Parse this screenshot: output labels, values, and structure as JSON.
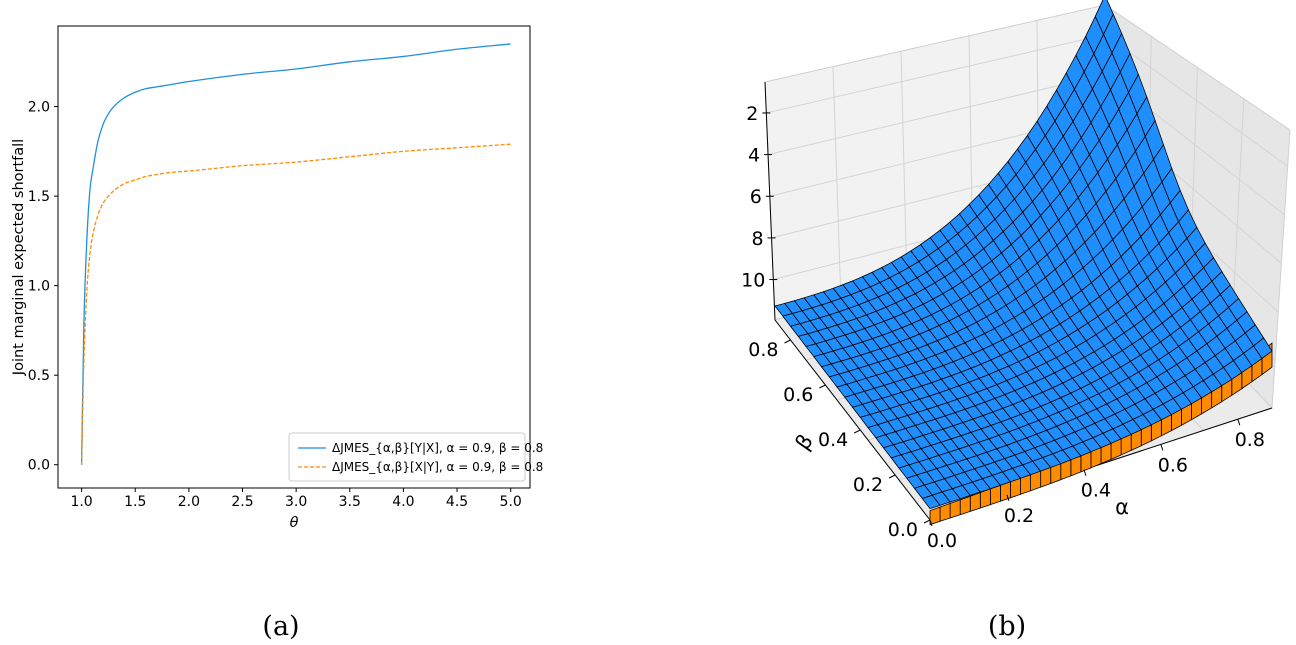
{
  "captions": {
    "a": "(a)",
    "b": "(b)"
  },
  "chart_data": [
    {
      "type": "line",
      "xlabel": "θ",
      "ylabel": "Joint marginal expected shortfall",
      "xlim": [
        0.78,
        5.18
      ],
      "ylim": [
        -0.13,
        2.45
      ],
      "xticks": [
        1.0,
        1.5,
        2.0,
        2.5,
        3.0,
        3.5,
        4.0,
        4.5,
        5.0
      ],
      "xtick_labels": [
        "1.0",
        "1.5",
        "2.0",
        "2.5",
        "3.0",
        "3.5",
        "4.0",
        "4.5",
        "5.0"
      ],
      "yticks": [
        0.0,
        0.5,
        1.0,
        1.5,
        2.0
      ],
      "ytick_labels": [
        "0.0",
        "0.5",
        "1.0",
        "1.5",
        "2.0"
      ],
      "grid": false,
      "legend_position": "lower-right",
      "series": [
        {
          "name": "ΔJMES_{α,β}[Y|X], α = 0.9, β = 0.8",
          "color": "#1f8fe0",
          "linestyle": "solid",
          "x": [
            1.0,
            1.02,
            1.05,
            1.08,
            1.1,
            1.15,
            1.2,
            1.25,
            1.3,
            1.4,
            1.5,
            1.6,
            1.7,
            1.8,
            2.0,
            2.5,
            3.0,
            3.5,
            4.0,
            4.5,
            5.0
          ],
          "y": [
            0.0,
            0.75,
            1.27,
            1.55,
            1.63,
            1.8,
            1.9,
            1.96,
            2.0,
            2.05,
            2.08,
            2.1,
            2.11,
            2.12,
            2.14,
            2.18,
            2.21,
            2.25,
            2.28,
            2.32,
            2.35
          ]
        },
        {
          "name": "ΔJMES_{α,β}[X|Y], α = 0.9, β = 0.8",
          "color": "#ff8c00",
          "linestyle": "dashed",
          "x": [
            1.0,
            1.02,
            1.05,
            1.08,
            1.1,
            1.15,
            1.2,
            1.25,
            1.3,
            1.4,
            1.5,
            1.6,
            1.7,
            1.8,
            2.0,
            2.5,
            3.0,
            3.5,
            4.0,
            4.5,
            5.0
          ],
          "y": [
            0.0,
            0.55,
            0.98,
            1.19,
            1.27,
            1.39,
            1.46,
            1.5,
            1.53,
            1.57,
            1.59,
            1.61,
            1.62,
            1.63,
            1.64,
            1.67,
            1.69,
            1.72,
            1.75,
            1.77,
            1.79
          ]
        }
      ]
    },
    {
      "type": "surface3d",
      "xlabel": "α",
      "ylabel": "β",
      "zlabel": "",
      "xticks": [
        "0.0",
        "0.2",
        "0.4",
        "0.6",
        "0.8"
      ],
      "yticks": [
        "0.0",
        "0.2",
        "0.4",
        "0.6",
        "0.8"
      ],
      "zticks": [
        "2",
        "4",
        "6",
        "8",
        "10"
      ],
      "grid": true,
      "surfaces": [
        {
          "name": "",
          "color": "#1f8fff"
        },
        {
          "name": "",
          "color": "#ff8c00"
        }
      ]
    }
  ]
}
